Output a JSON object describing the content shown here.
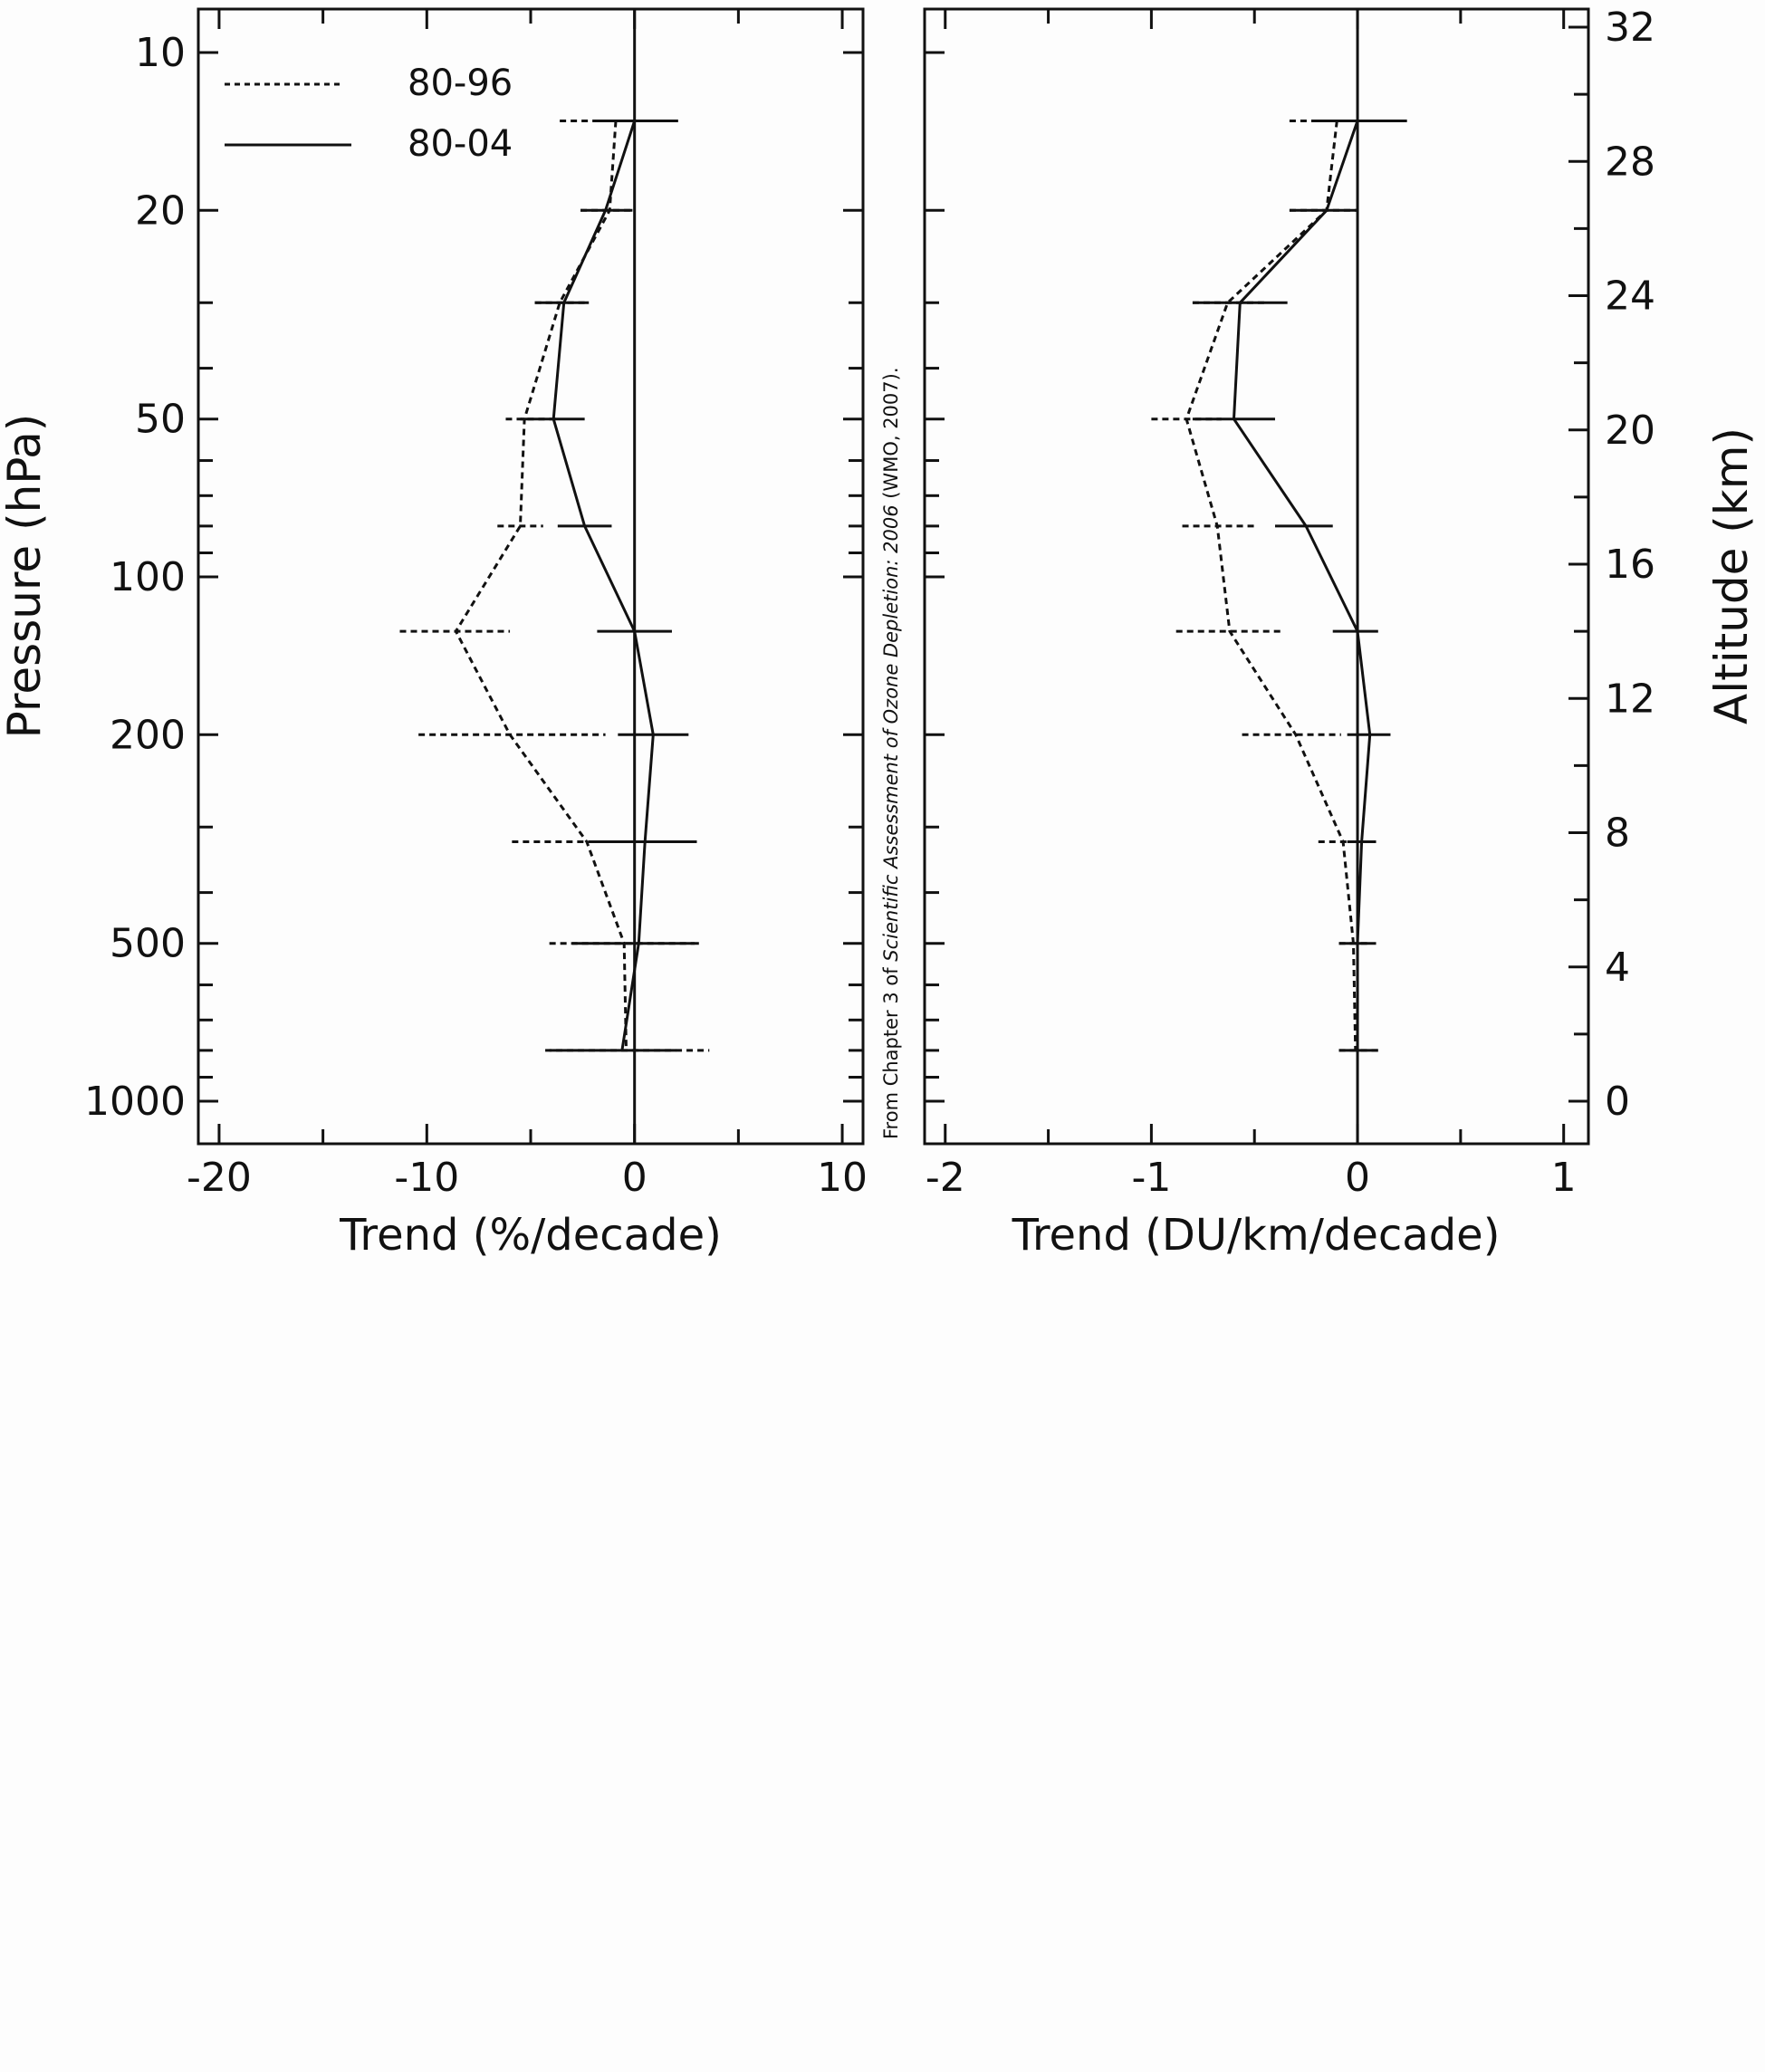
{
  "chart_data": [
    {
      "type": "line",
      "xlabel": "Trend (%/decade)",
      "ylabel": "Pressure (hPa)",
      "xlim": [
        -21,
        11
      ],
      "ylim": [
        10,
        1000
      ],
      "y_scale": "log",
      "x_ticks": [
        "-20",
        "-10",
        "0",
        "10"
      ],
      "y_ticks": [
        "10",
        "20",
        "50",
        "100",
        "200",
        "500",
        "1000"
      ],
      "legend": {
        "placement": "top-left",
        "entries": [
          "80-96",
          "80-04"
        ]
      },
      "reference_line_x": 0,
      "series": [
        {
          "name": "80-96",
          "style": "dashed",
          "points": [
            {
              "p": 13.5,
              "x": -0.9,
              "lo": -3.6,
              "hi": 1.8
            },
            {
              "p": 20,
              "x": -1.2,
              "lo": -2.6,
              "hi": 0.0
            },
            {
              "p": 30,
              "x": -3.6,
              "lo": -4.8,
              "hi": -2.4
            },
            {
              "p": 50,
              "x": -5.3,
              "lo": -6.2,
              "hi": -3.8
            },
            {
              "p": 80,
              "x": -5.5,
              "lo": -6.6,
              "hi": -4.4
            },
            {
              "p": 127,
              "x": -8.6,
              "lo": -11.3,
              "hi": -6.0
            },
            {
              "p": 200,
              "x": -6.0,
              "lo": -10.4,
              "hi": -1.4
            },
            {
              "p": 320,
              "x": -2.3,
              "lo": -5.9,
              "hi": 1.4
            },
            {
              "p": 500,
              "x": -0.5,
              "lo": -4.1,
              "hi": 2.9
            },
            {
              "p": 800,
              "x": -0.4,
              "lo": -4.3,
              "hi": 3.6
            }
          ]
        },
        {
          "name": "80-04",
          "style": "solid",
          "points": [
            {
              "p": 13.5,
              "x": 0.0,
              "lo": -1.9,
              "hi": 2.1
            },
            {
              "p": 20,
              "x": -1.4,
              "lo": -2.6,
              "hi": -0.1
            },
            {
              "p": 30,
              "x": -3.4,
              "lo": -4.8,
              "hi": -2.2
            },
            {
              "p": 50,
              "x": -3.9,
              "lo": -5.5,
              "hi": -2.4
            },
            {
              "p": 80,
              "x": -2.4,
              "lo": -3.7,
              "hi": -1.1
            },
            {
              "p": 127,
              "x": 0.0,
              "lo": -1.8,
              "hi": 1.8
            },
            {
              "p": 200,
              "x": 0.9,
              "lo": -0.8,
              "hi": 2.6
            },
            {
              "p": 320,
              "x": 0.5,
              "lo": -2.1,
              "hi": 3.0
            },
            {
              "p": 500,
              "x": 0.2,
              "lo": -3.0,
              "hi": 3.1
            },
            {
              "p": 800,
              "x": -0.6,
              "lo": -4.1,
              "hi": 2.0
            }
          ]
        }
      ]
    },
    {
      "type": "line",
      "xlabel": "Trend (DU/km/decade)",
      "ylabel": "Altitude (km)",
      "xlim": [
        -2.1,
        1.12
      ],
      "ylim": [
        0,
        32
      ],
      "x_ticks": [
        "-2",
        "-1",
        "0",
        "1"
      ],
      "y_ticks": [
        "0",
        "4",
        "8",
        "12",
        "16",
        "20",
        "24",
        "28",
        "32"
      ],
      "reference_line_x": 0,
      "series": [
        {
          "name": "80-96",
          "style": "dashed",
          "points": [
            {
              "p": 13.5,
              "x": -0.1,
              "lo": -0.33,
              "hi": 0.0
            },
            {
              "p": 20,
              "x": -0.15,
              "lo": -0.33,
              "hi": 0.0
            },
            {
              "p": 30,
              "x": -0.63,
              "lo": -0.8,
              "hi": -0.45
            },
            {
              "p": 50,
              "x": -0.83,
              "lo": -1.0,
              "hi": -0.66
            },
            {
              "p": 80,
              "x": -0.68,
              "lo": -0.85,
              "hi": -0.5
            },
            {
              "p": 127,
              "x": -0.62,
              "lo": -0.88,
              "hi": -0.36
            },
            {
              "p": 200,
              "x": -0.3,
              "lo": -0.56,
              "hi": -0.08
            },
            {
              "p": 320,
              "x": -0.07,
              "lo": -0.19,
              "hi": 0.05
            },
            {
              "p": 500,
              "x": -0.02,
              "lo": -0.09,
              "hi": 0.05
            },
            {
              "p": 800,
              "x": -0.01,
              "lo": -0.09,
              "hi": 0.1
            }
          ]
        },
        {
          "name": "80-04",
          "style": "solid",
          "points": [
            {
              "p": 13.5,
              "x": 0.0,
              "lo": -0.22,
              "hi": 0.24
            },
            {
              "p": 20,
              "x": -0.15,
              "lo": -0.33,
              "hi": 0.0
            },
            {
              "p": 30,
              "x": -0.57,
              "lo": -0.8,
              "hi": -0.34
            },
            {
              "p": 50,
              "x": -0.6,
              "lo": -0.8,
              "hi": -0.4
            },
            {
              "p": 80,
              "x": -0.25,
              "lo": -0.4,
              "hi": -0.12
            },
            {
              "p": 127,
              "x": 0.0,
              "lo": -0.12,
              "hi": 0.1
            },
            {
              "p": 200,
              "x": 0.06,
              "lo": -0.05,
              "hi": 0.16
            },
            {
              "p": 320,
              "x": 0.02,
              "lo": -0.05,
              "hi": 0.09
            },
            {
              "p": 500,
              "x": 0.0,
              "lo": -0.09,
              "hi": 0.09
            },
            {
              "p": 800,
              "x": 0.0,
              "lo": -0.09,
              "hi": 0.1
            }
          ]
        }
      ]
    }
  ],
  "source_note": {
    "prefix": "From Chapter 3 of ",
    "italic": "Scientific Assessment of Ozone Depletion: 2006",
    "suffix": " (WMO, 2007)."
  }
}
